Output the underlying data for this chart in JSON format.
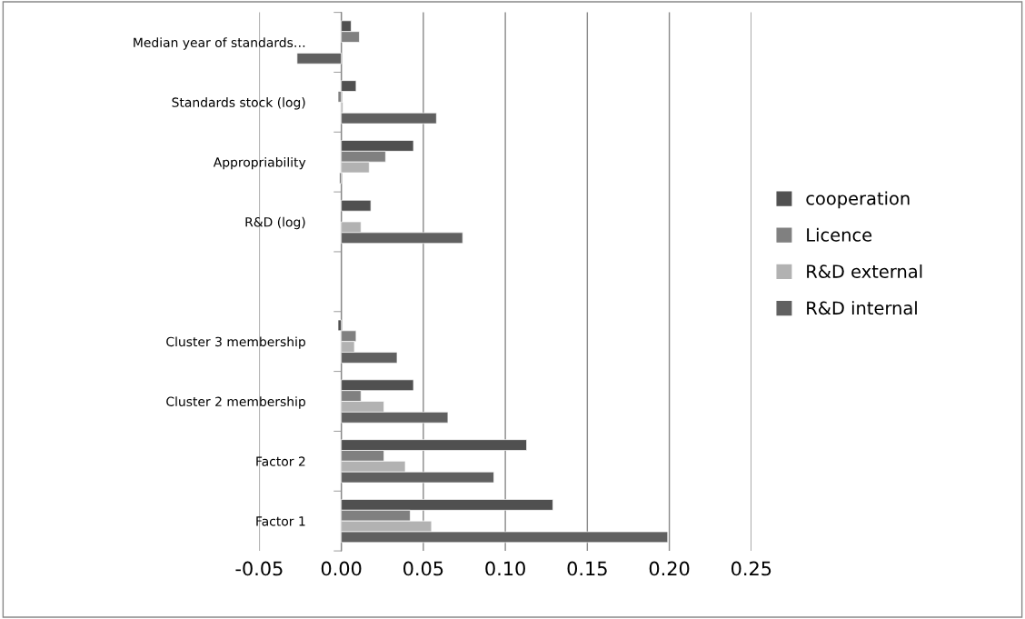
{
  "chart_data": {
    "type": "bar",
    "orientation": "horizontal",
    "categories": [
      "Median year of standards…",
      "Standards stock (log)",
      "Appropriability",
      "R&D (log)",
      null,
      "Cluster 3 membership",
      "Cluster 2 membership",
      "Factor 2",
      "Factor 1"
    ],
    "series": [
      {
        "name": "cooperation",
        "color": "#505050",
        "values": [
          0.006,
          0.009,
          0.044,
          0.018,
          null,
          -0.002,
          0.044,
          0.113,
          0.129
        ]
      },
      {
        "name": "Licence",
        "color": "#808080",
        "values": [
          0.011,
          -0.002,
          0.027,
          null,
          null,
          0.009,
          0.012,
          0.026,
          0.042
        ]
      },
      {
        "name": "R&D external",
        "color": "#b2b2b2",
        "values": [
          null,
          0.001,
          0.017,
          0.012,
          null,
          0.008,
          0.026,
          0.039,
          0.055
        ]
      },
      {
        "name": "R&D internal",
        "color": "#606060",
        "values": [
          -0.027,
          0.058,
          -0.001,
          0.074,
          null,
          0.034,
          0.065,
          0.093,
          0.199
        ]
      }
    ],
    "xlim": [
      -0.05,
      0.25
    ],
    "xticks": [
      {
        "value": -0.05,
        "label": "-0.05"
      },
      {
        "value": 0,
        "label": "0.00"
      },
      {
        "value": 0.05,
        "label": "0.05"
      },
      {
        "value": 0.1,
        "label": "0.10"
      },
      {
        "value": 0.15,
        "label": "0.15"
      },
      {
        "value": 0.2,
        "label": "0.20"
      },
      {
        "value": 0.25,
        "label": "0.25"
      }
    ],
    "grid": "x",
    "legend": "right"
  }
}
